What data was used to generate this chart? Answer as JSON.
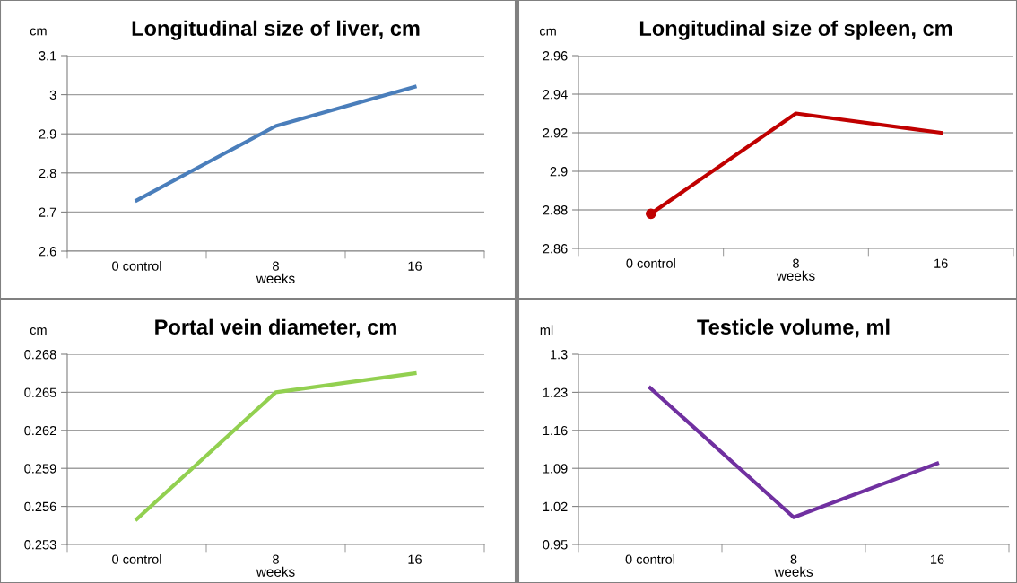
{
  "chart_data": [
    {
      "type": "line",
      "title": "Longitudinal size of liver, cm",
      "ylabel": "cm",
      "xlabel": "weeks",
      "categories": [
        "0 control",
        "8",
        "16"
      ],
      "series": [
        {
          "color": "#4a7ebb",
          "values": [
            2.73,
            2.92,
            3.02
          ]
        }
      ],
      "ylim": [
        2.6,
        3.1
      ],
      "yticks": [
        {
          "value": 2.6,
          "label": "2.6"
        },
        {
          "value": 2.7,
          "label": "2.7"
        },
        {
          "value": 2.8,
          "label": "2.8"
        },
        {
          "value": 2.9,
          "label": "2.9"
        },
        {
          "value": 3.0,
          "label": "3"
        },
        {
          "value": 3.1,
          "label": "3.1"
        }
      ],
      "grid": "y"
    },
    {
      "type": "line",
      "title": "Longitudinal size of spleen, cm",
      "ylabel": "cm",
      "xlabel": "weeks",
      "categories": [
        "0 control",
        "8",
        "16"
      ],
      "series": [
        {
          "color": "#c00000",
          "values": [
            2.878,
            2.93,
            2.92
          ]
        },
        {
          "type": "scatter",
          "color": "#c00000",
          "x": [
            "0 control"
          ],
          "values": [
            2.878
          ]
        }
      ],
      "ylim": [
        2.86,
        2.96
      ],
      "yticks": [
        {
          "value": 2.86,
          "label": "2.86"
        },
        {
          "value": 2.88,
          "label": "2.88"
        },
        {
          "value": 2.9,
          "label": "2.9"
        },
        {
          "value": 2.92,
          "label": "2.92"
        },
        {
          "value": 2.94,
          "label": "2.94"
        },
        {
          "value": 2.96,
          "label": "2.96"
        }
      ],
      "grid": "y"
    },
    {
      "type": "line",
      "title": "Portal vein diameter, cm",
      "ylabel": "cm",
      "xlabel": "weeks",
      "categories": [
        "0 control",
        "8",
        "16"
      ],
      "series": [
        {
          "color": "#92d050",
          "values": [
            0.255,
            0.265,
            0.2665
          ]
        }
      ],
      "ylim": [
        0.253,
        0.268
      ],
      "yticks": [
        {
          "value": 0.253,
          "label": "0.253"
        },
        {
          "value": 0.256,
          "label": "0.256"
        },
        {
          "value": 0.259,
          "label": "0.259"
        },
        {
          "value": 0.262,
          "label": "0.262"
        },
        {
          "value": 0.265,
          "label": "0.265"
        },
        {
          "value": 0.268,
          "label": "0.268"
        }
      ],
      "grid": "y"
    },
    {
      "type": "line",
      "title": "Testicle volume, ml",
      "ylabel": "ml",
      "xlabel": "weeks",
      "categories": [
        "0 control",
        "8",
        "16"
      ],
      "series": [
        {
          "color": "#7030a0",
          "values": [
            1.238,
            1.0,
            1.099
          ]
        }
      ],
      "ylim": [
        0.95,
        1.3
      ],
      "yticks": [
        {
          "value": 0.95,
          "label": "0.95"
        },
        {
          "value": 1.02,
          "label": "1.02"
        },
        {
          "value": 1.09,
          "label": "1.09"
        },
        {
          "value": 1.16,
          "label": "1.16"
        },
        {
          "value": 1.23,
          "label": "1.23"
        },
        {
          "value": 1.3,
          "label": "1.3"
        }
      ],
      "grid": "y"
    }
  ]
}
